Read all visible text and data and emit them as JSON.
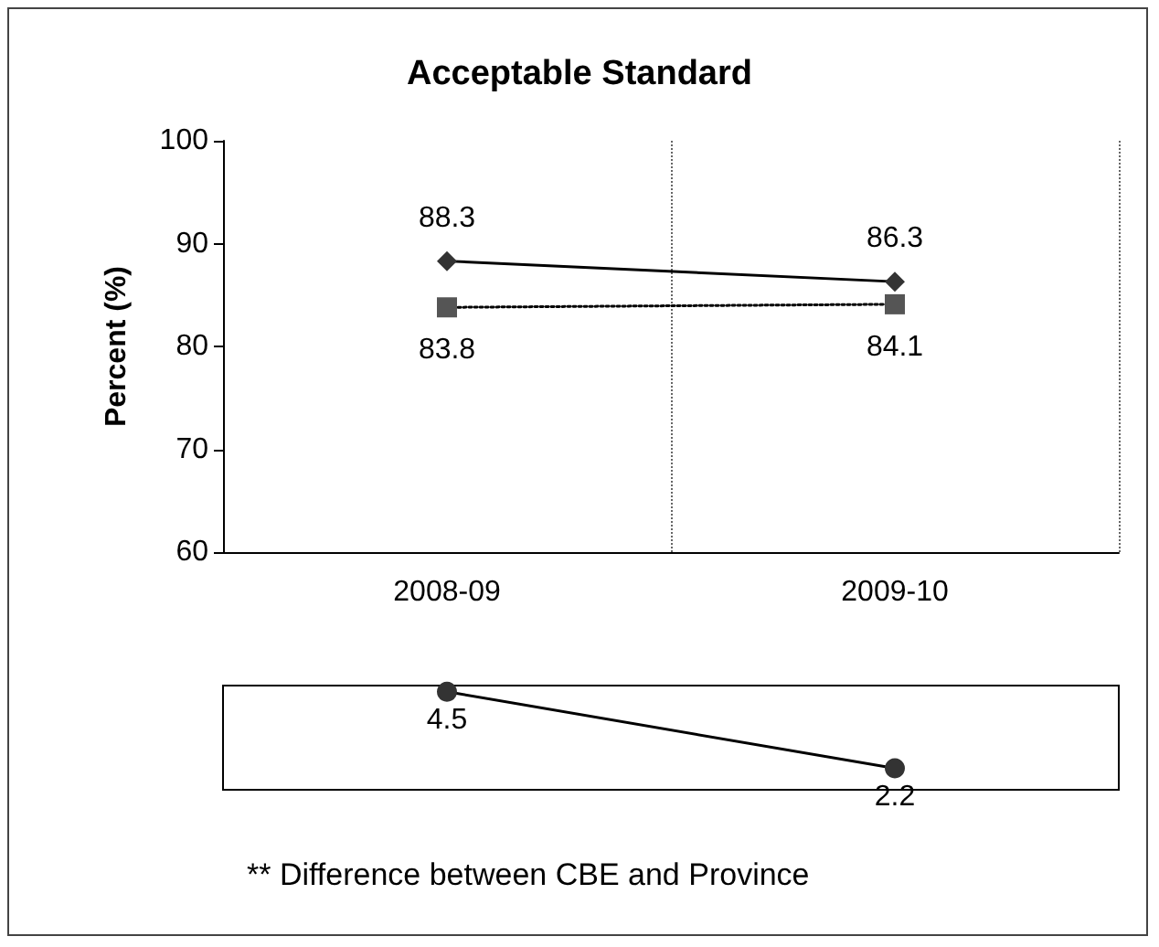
{
  "chart_data": [
    {
      "type": "line",
      "title": "Acceptable Standard",
      "ylabel": "Percent (%)",
      "categories": [
        "2008-09",
        "2009-10"
      ],
      "series": [
        {
          "color": "#333333",
          "values": [
            88.3,
            86.3
          ],
          "marker": "diamond",
          "line_style": "solid"
        },
        {
          "color": "#555555",
          "values": [
            83.8,
            84.1
          ],
          "marker": "square",
          "line_style": "dotted"
        }
      ],
      "ylim": [
        60,
        100
      ],
      "yticks": [
        60,
        70,
        80,
        90,
        100
      ],
      "grid": "x",
      "data_labels": true
    },
    {
      "type": "line",
      "categories": [
        null,
        null
      ],
      "series": [
        {
          "color": "#333333",
          "values": [
            4.5,
            2.2
          ],
          "marker": "circle",
          "line_style": "solid"
        }
      ],
      "data_labels": true,
      "annotations": [
        "** Difference between CBE and Province"
      ]
    }
  ]
}
